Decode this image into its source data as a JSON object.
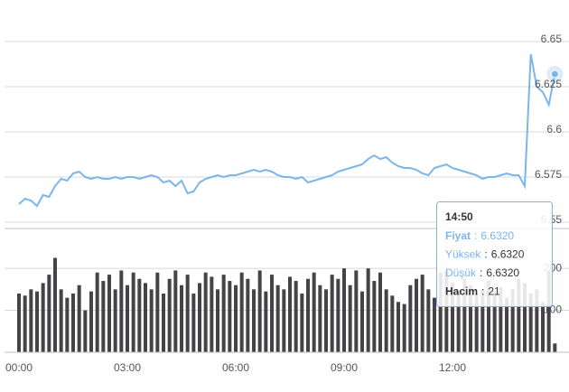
{
  "chart_data": {
    "type": "line",
    "color": "#7cb5ec",
    "x": [
      0,
      10,
      20,
      30,
      40,
      50,
      60,
      70,
      80,
      90,
      100,
      110,
      120,
      130,
      140,
      150,
      160,
      170,
      180,
      190,
      200,
      210,
      220,
      230,
      240,
      250,
      260,
      270,
      280,
      290,
      300,
      310,
      320,
      330,
      340,
      350,
      360,
      370,
      380,
      390,
      400,
      410,
      420,
      430,
      440,
      450,
      460,
      470,
      480,
      490,
      500,
      510,
      520,
      530,
      540,
      550,
      560,
      570,
      580,
      590,
      600,
      610,
      620,
      630,
      640,
      650,
      660,
      670,
      680,
      690,
      700,
      710,
      720,
      730,
      740,
      750,
      760,
      770,
      780,
      790,
      800,
      810,
      820,
      830,
      840,
      850,
      860,
      870,
      880,
      890
    ],
    "values": [
      6.56,
      6.563,
      6.562,
      6.559,
      6.565,
      6.564,
      6.57,
      6.574,
      6.573,
      6.577,
      6.578,
      6.575,
      6.574,
      6.575,
      6.574,
      6.574,
      6.575,
      6.574,
      6.575,
      6.575,
      6.574,
      6.575,
      6.576,
      6.575,
      6.572,
      6.573,
      6.57,
      6.573,
      6.566,
      6.567,
      6.572,
      6.574,
      6.575,
      6.576,
      6.575,
      6.576,
      6.576,
      6.577,
      6.578,
      6.579,
      6.578,
      6.579,
      6.578,
      6.576,
      6.575,
      6.575,
      6.574,
      6.575,
      6.572,
      6.573,
      6.574,
      6.575,
      6.576,
      6.578,
      6.579,
      6.58,
      6.581,
      6.582,
      6.585,
      6.587,
      6.585,
      6.586,
      6.583,
      6.581,
      6.58,
      6.58,
      6.579,
      6.577,
      6.576,
      6.58,
      6.581,
      6.582,
      6.58,
      6.579,
      6.578,
      6.577,
      6.576,
      6.574,
      6.575,
      6.575,
      6.576,
      6.577,
      6.576,
      6.576,
      6.57,
      6.643,
      6.625,
      6.622,
      6.615,
      6.632
    ],
    "xlim": [
      -24,
      900
    ],
    "xticks": [
      {
        "value": 0,
        "label": "00:00"
      },
      {
        "value": 180,
        "label": "03:00"
      },
      {
        "value": 360,
        "label": "06:00"
      },
      {
        "value": 540,
        "label": "09:00"
      },
      {
        "value": 720,
        "label": "12:00"
      }
    ],
    "ylim": [
      6.5465,
      6.673
    ],
    "yticks": [
      6.55,
      6.575,
      6.6,
      6.625,
      6.65
    ],
    "grid": true,
    "volume": {
      "type": "bar",
      "color": "#434348",
      "values": [
        140,
        135,
        150,
        145,
        165,
        185,
        225,
        150,
        130,
        140,
        160,
        100,
        145,
        190,
        170,
        185,
        150,
        195,
        160,
        190,
        175,
        165,
        150,
        190,
        140,
        175,
        195,
        160,
        185,
        140,
        165,
        190,
        180,
        150,
        185,
        170,
        160,
        190,
        175,
        150,
        195,
        145,
        185,
        160,
        150,
        180,
        170,
        140,
        175,
        190,
        160,
        150,
        185,
        175,
        200,
        160,
        195,
        145,
        200,
        170,
        190,
        150,
        135,
        120,
        115,
        160,
        175,
        185,
        150,
        130,
        190,
        195,
        165,
        145,
        175,
        160,
        140,
        150,
        170,
        145,
        155,
        130,
        150,
        175,
        165,
        140,
        150,
        120,
        195,
        21
      ],
      "ylim": [
        0,
        295
      ],
      "yticks": [
        100,
        200
      ]
    },
    "tooltip": {
      "time": "14:50",
      "separator": ":",
      "rows": [
        {
          "label": "Fiyat",
          "value": "6.6320"
        },
        {
          "label": "Yüksek",
          "value": "6.6320"
        },
        {
          "label": "Düşük",
          "value": "6.6320"
        },
        {
          "label": "Hacim",
          "value": "21"
        }
      ]
    }
  }
}
